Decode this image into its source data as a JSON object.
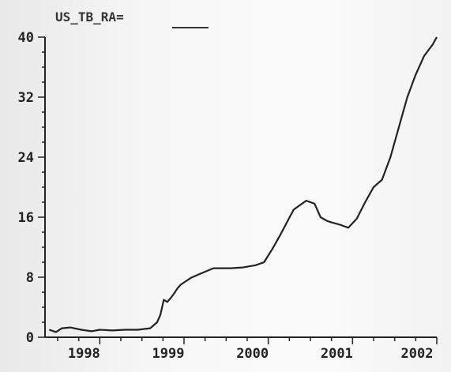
{
  "chart_data": {
    "type": "line",
    "title": "US_TB_RA=",
    "xlabel": "",
    "ylabel": "",
    "xlim": [
      1997.35,
      2002.0
    ],
    "ylim": [
      0,
      40
    ],
    "y_ticks": [
      0,
      8,
      16,
      24,
      32,
      40
    ],
    "y_tick_labels": [
      "0",
      "8",
      "16",
      "24",
      "32",
      "40"
    ],
    "x_ticks": [
      1998,
      1999,
      2000,
      2001,
      2002
    ],
    "x_tick_labels": [
      "1998",
      "1999",
      "2000",
      "2001",
      "2002"
    ],
    "grid": false,
    "series": [
      {
        "name": "",
        "color": "#222222",
        "x": [
          1997.4,
          1997.48,
          1997.55,
          1997.65,
          1997.78,
          1997.9,
          1998.0,
          1998.15,
          1998.3,
          1998.45,
          1998.6,
          1998.68,
          1998.72,
          1998.76,
          1998.8,
          1998.84,
          1998.88,
          1998.92,
          1998.96,
          1999.0,
          1999.08,
          1999.2,
          1999.35,
          1999.45,
          1999.55,
          1999.7,
          1999.85,
          1999.95,
          2000.05,
          2000.15,
          2000.3,
          2000.45,
          2000.55,
          2000.62,
          2000.7,
          2000.75,
          2000.85,
          2000.95,
          2001.05,
          2001.15,
          2001.25,
          2001.35,
          2001.45,
          2001.55,
          2001.65,
          2001.75,
          2001.85,
          2001.95,
          2002.0
        ],
        "values": [
          1.0,
          0.7,
          1.2,
          1.3,
          1.0,
          0.8,
          1.0,
          0.9,
          1.0,
          1.0,
          1.2,
          2.0,
          3.0,
          5.0,
          4.7,
          5.2,
          5.8,
          6.5,
          7.0,
          7.3,
          7.9,
          8.5,
          9.2,
          9.2,
          9.2,
          9.3,
          9.6,
          10.0,
          11.8,
          13.8,
          17.0,
          18.2,
          17.8,
          16.0,
          15.5,
          15.3,
          15.0,
          14.6,
          15.8,
          18.0,
          20.0,
          21.0,
          24.0,
          28.0,
          32.0,
          35.0,
          37.5,
          39.0,
          40.0
        ]
      }
    ]
  }
}
